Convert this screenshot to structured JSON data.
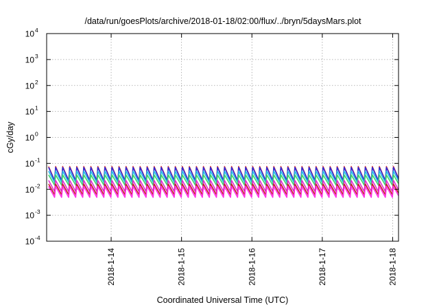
{
  "chart_data": {
    "type": "line",
    "title": "/data/run/goesPlots/archive/2018-01-18/02:00/flux/../bryn/5daysMars.plot",
    "xlabel": "Coordinated Universal Time (UTC)",
    "ylabel": "cGy/day",
    "y_scale": "log",
    "ylim": [
      0.0001,
      10000
    ],
    "xlim": [
      "2018-01-13 02:00",
      "2018-01-18 02:00"
    ],
    "grid": true,
    "y_ticks": [
      {
        "base": "10",
        "exp": "-4",
        "value": 0.0001
      },
      {
        "base": "10",
        "exp": "-3",
        "value": 0.001
      },
      {
        "base": "10",
        "exp": "-2",
        "value": 0.01
      },
      {
        "base": "10",
        "exp": "-1",
        "value": 0.1
      },
      {
        "base": "10",
        "exp": "0",
        "value": 1
      },
      {
        "base": "10",
        "exp": "1",
        "value": 10
      },
      {
        "base": "10",
        "exp": "2",
        "value": 100
      },
      {
        "base": "10",
        "exp": "3",
        "value": 1000
      },
      {
        "base": "10",
        "exp": "4",
        "value": 10000
      }
    ],
    "x_ticks": [
      {
        "label": "2018-1-14",
        "value": "2018-01-14 00:00"
      },
      {
        "label": "2018-1-15",
        "value": "2018-01-15 00:00"
      },
      {
        "label": "2018-1-16",
        "value": "2018-01-16 00:00"
      },
      {
        "label": "2018-1-17",
        "value": "2018-01-17 00:00"
      },
      {
        "label": "2018-1-18",
        "value": "2018-01-18 00:00"
      }
    ],
    "pattern": {
      "shape": "sawtooth",
      "first_peak": "2018-01-13 02:40",
      "period_hours": 2.4,
      "decay_fraction": 0.85
    },
    "series": [
      {
        "color": "#e8241e",
        "peak": 0.075,
        "trough": 0.022
      },
      {
        "color": "#2d2dd6",
        "peak": 0.07,
        "trough": 0.0215
      },
      {
        "color": "#25b8e6",
        "peak": 0.05,
        "trough": 0.0185
      },
      {
        "color": "#3bd468",
        "peak": 0.036,
        "trough": 0.0145
      },
      {
        "color": "#e02ad3",
        "peak": 0.022,
        "trough": 0.0082
      },
      {
        "color": "#c02020",
        "peak": 0.016,
        "trough": 0.0062
      },
      {
        "color": "#ff30e8",
        "peak": 0.013,
        "trough": 0.0049
      }
    ]
  }
}
